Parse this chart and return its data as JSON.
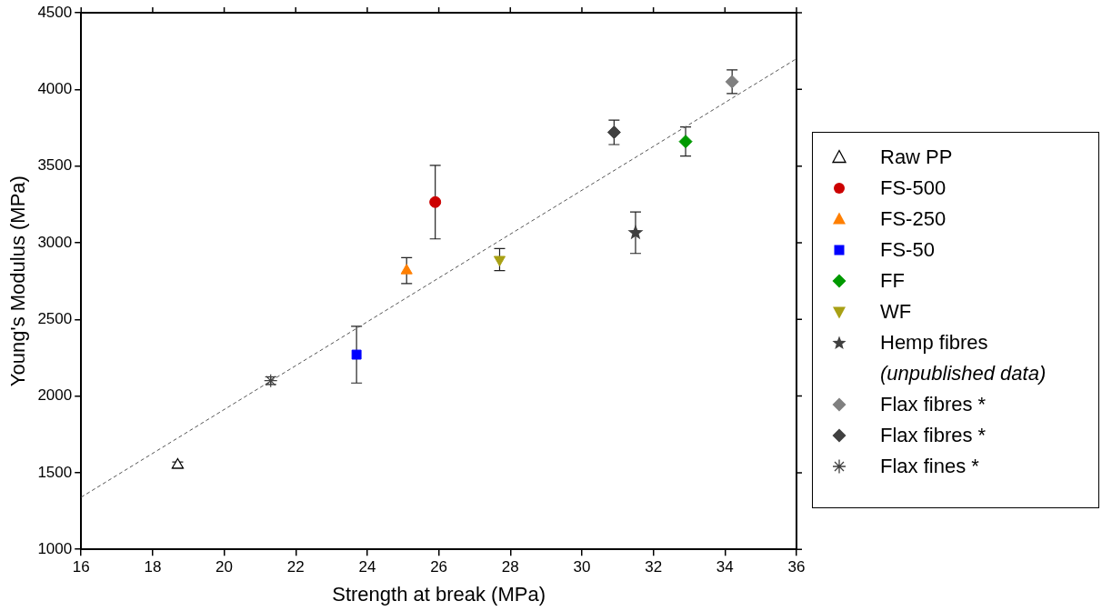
{
  "chart_data": {
    "type": "scatter",
    "xlabel": "Strength at break (MPa)",
    "ylabel": "Young's Modulus (MPa)",
    "xlim": [
      16,
      36
    ],
    "xticks": [
      16,
      18,
      20,
      22,
      24,
      26,
      28,
      30,
      32,
      34,
      36
    ],
    "ylim": [
      1000,
      4500
    ],
    "yticks": [
      1000,
      1500,
      2000,
      2500,
      3000,
      3500,
      4000,
      4500
    ],
    "grid": false,
    "legend": "right",
    "series": [
      {
        "name": "Raw PP",
        "color": "#000000",
        "marker": "triangle-open",
        "x": [
          18.7
        ],
        "values": [
          1550
        ],
        "errors": [
          20
        ]
      },
      {
        "name": "FS-500",
        "color": "#cc0000",
        "marker": "circle",
        "x": [
          25.9
        ],
        "values": [
          3265
        ],
        "errors": [
          240
        ]
      },
      {
        "name": "FS-250",
        "color": "#ff7f00",
        "marker": "triangle",
        "x": [
          25.1
        ],
        "values": [
          2818
        ],
        "errors": [
          85
        ]
      },
      {
        "name": "FS-50",
        "color": "#0000ff",
        "marker": "square",
        "x": [
          23.7
        ],
        "values": [
          2270
        ],
        "errors": [
          185
        ]
      },
      {
        "name": "FF",
        "color": "#009900",
        "marker": "diamond",
        "x": [
          32.9
        ],
        "values": [
          3660
        ],
        "errors": [
          95
        ]
      },
      {
        "name": "WF",
        "color": "#a8a014",
        "marker": "triangle-down",
        "x": [
          27.7
        ],
        "values": [
          2890
        ],
        "errors": [
          72
        ]
      },
      {
        "name": "Hemp fibres (unpublished data)",
        "color": "#404040",
        "marker": "star",
        "x": [
          31.5
        ],
        "values": [
          3065
        ],
        "errors": [
          135
        ]
      },
      {
        "name": "Flax fibres *",
        "color": "#808080",
        "marker": "diamond",
        "x": [
          34.2
        ],
        "values": [
          4050
        ],
        "errors": [
          77
        ]
      },
      {
        "name": "Flax fibres *",
        "color": "#404040",
        "marker": "diamond",
        "x": [
          30.9
        ],
        "values": [
          3720
        ],
        "errors": [
          80
        ]
      },
      {
        "name": "Flax fines *",
        "color": "#404040",
        "marker": "cross",
        "x": [
          21.3
        ],
        "values": [
          2100
        ],
        "errors": [
          25
        ]
      },
      {
        "type": "line",
        "color": "#555555",
        "line_style": "dashed",
        "marker": "none",
        "x": [
          16,
          36
        ],
        "values": [
          1340,
          4200
        ]
      }
    ]
  }
}
